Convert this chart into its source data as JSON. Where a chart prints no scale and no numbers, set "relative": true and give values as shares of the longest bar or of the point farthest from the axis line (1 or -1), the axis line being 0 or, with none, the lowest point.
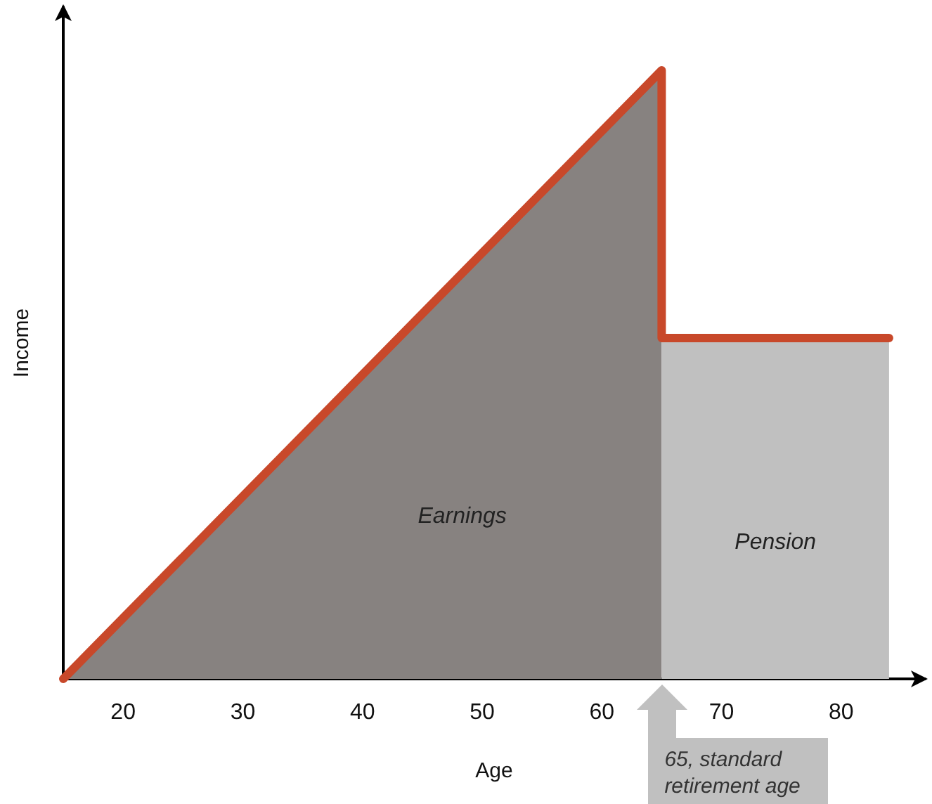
{
  "chart_data": {
    "type": "line",
    "relative": true,
    "xlabel": "Age",
    "ylabel": "Income",
    "xlim": [
      15,
      87
    ],
    "xticks": [
      20,
      30,
      40,
      50,
      60,
      70,
      80
    ],
    "series": [
      {
        "name": "Earnings",
        "type": "area",
        "color": "#878280",
        "x": [
          15,
          65
        ],
        "values": [
          0,
          1
        ]
      },
      {
        "name": "Pension",
        "type": "area",
        "color": "#c0c0c0",
        "x": [
          65,
          84
        ],
        "values": [
          0.56,
          0.56
        ]
      },
      {
        "color": "#c8482a",
        "x": [
          15,
          65,
          65,
          84
        ],
        "values": [
          0,
          1,
          0.56,
          0.56
        ]
      }
    ],
    "annotations": [
      "65, standard retirement age"
    ]
  }
}
